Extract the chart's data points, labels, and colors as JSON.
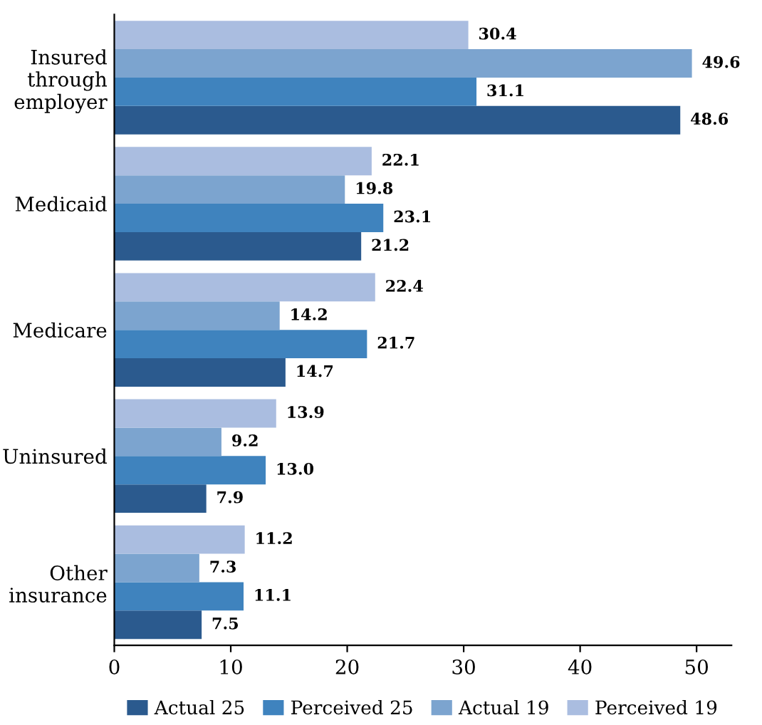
{
  "chart_data": {
    "type": "bar",
    "orientation": "horizontal",
    "categories": [
      "Insured\nthrough\nemployer",
      "Medicaid",
      "Medicare",
      "Uninsured",
      "Other\ninsurance"
    ],
    "series": [
      {
        "name": "Actual 25",
        "color": "#2b5a8e",
        "values": [
          48.6,
          21.2,
          14.7,
          7.9,
          7.5
        ],
        "value_labels": [
          "48.6",
          "21.2",
          "14.7",
          "7.9",
          "7.5"
        ]
      },
      {
        "name": "Perceived 25",
        "color": "#3f83be",
        "values": [
          31.1,
          23.1,
          21.7,
          13.0,
          11.1
        ],
        "value_labels": [
          "31.1",
          "23.1",
          "21.7",
          "13.0",
          "11.1"
        ]
      },
      {
        "name": "Actual 19",
        "color": "#7ca4cf",
        "values": [
          49.6,
          19.8,
          14.2,
          9.2,
          7.3
        ],
        "value_labels": [
          "49.6",
          "19.8",
          "14.2",
          "9.2",
          "7.3"
        ]
      },
      {
        "name": "Perceived 19",
        "color": "#aabde0",
        "values": [
          30.4,
          22.1,
          22.4,
          13.9,
          11.2
        ],
        "value_labels": [
          "30.4",
          "22.1",
          "22.4",
          "13.9",
          "11.2"
        ]
      }
    ],
    "xlim": [
      0,
      53
    ],
    "xticks": [
      0,
      10,
      20,
      30,
      40,
      50
    ],
    "legend": "bottom",
    "grid": false
  }
}
